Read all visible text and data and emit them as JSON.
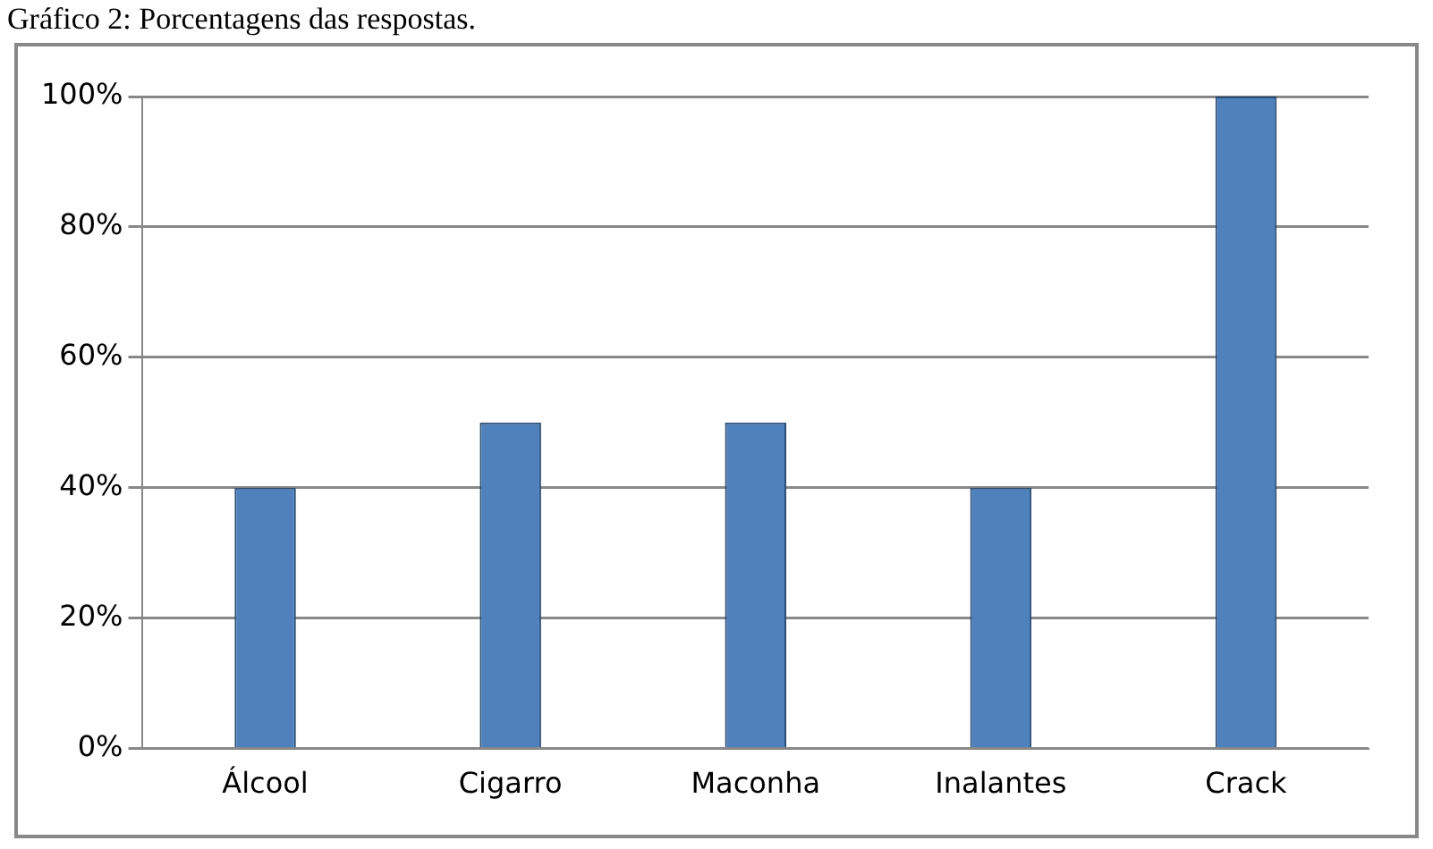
{
  "chart_data": {
    "type": "bar",
    "title": "Gráfico 2: Porcentagens das respostas.",
    "categories": [
      "Álcool",
      "Cigarro",
      "Maconha",
      "Inalantes",
      "Crack"
    ],
    "values": [
      40,
      50,
      50,
      40,
      100
    ],
    "color": "#4f81bd",
    "ylim": [
      0,
      100
    ],
    "yticks": [
      {
        "value": 0,
        "label": "0%"
      },
      {
        "value": 20,
        "label": "20%"
      },
      {
        "value": 40,
        "label": "40%"
      },
      {
        "value": 60,
        "label": "60%"
      },
      {
        "value": 80,
        "label": "80%"
      },
      {
        "value": 100,
        "label": "100%"
      }
    ],
    "grid": "y"
  }
}
